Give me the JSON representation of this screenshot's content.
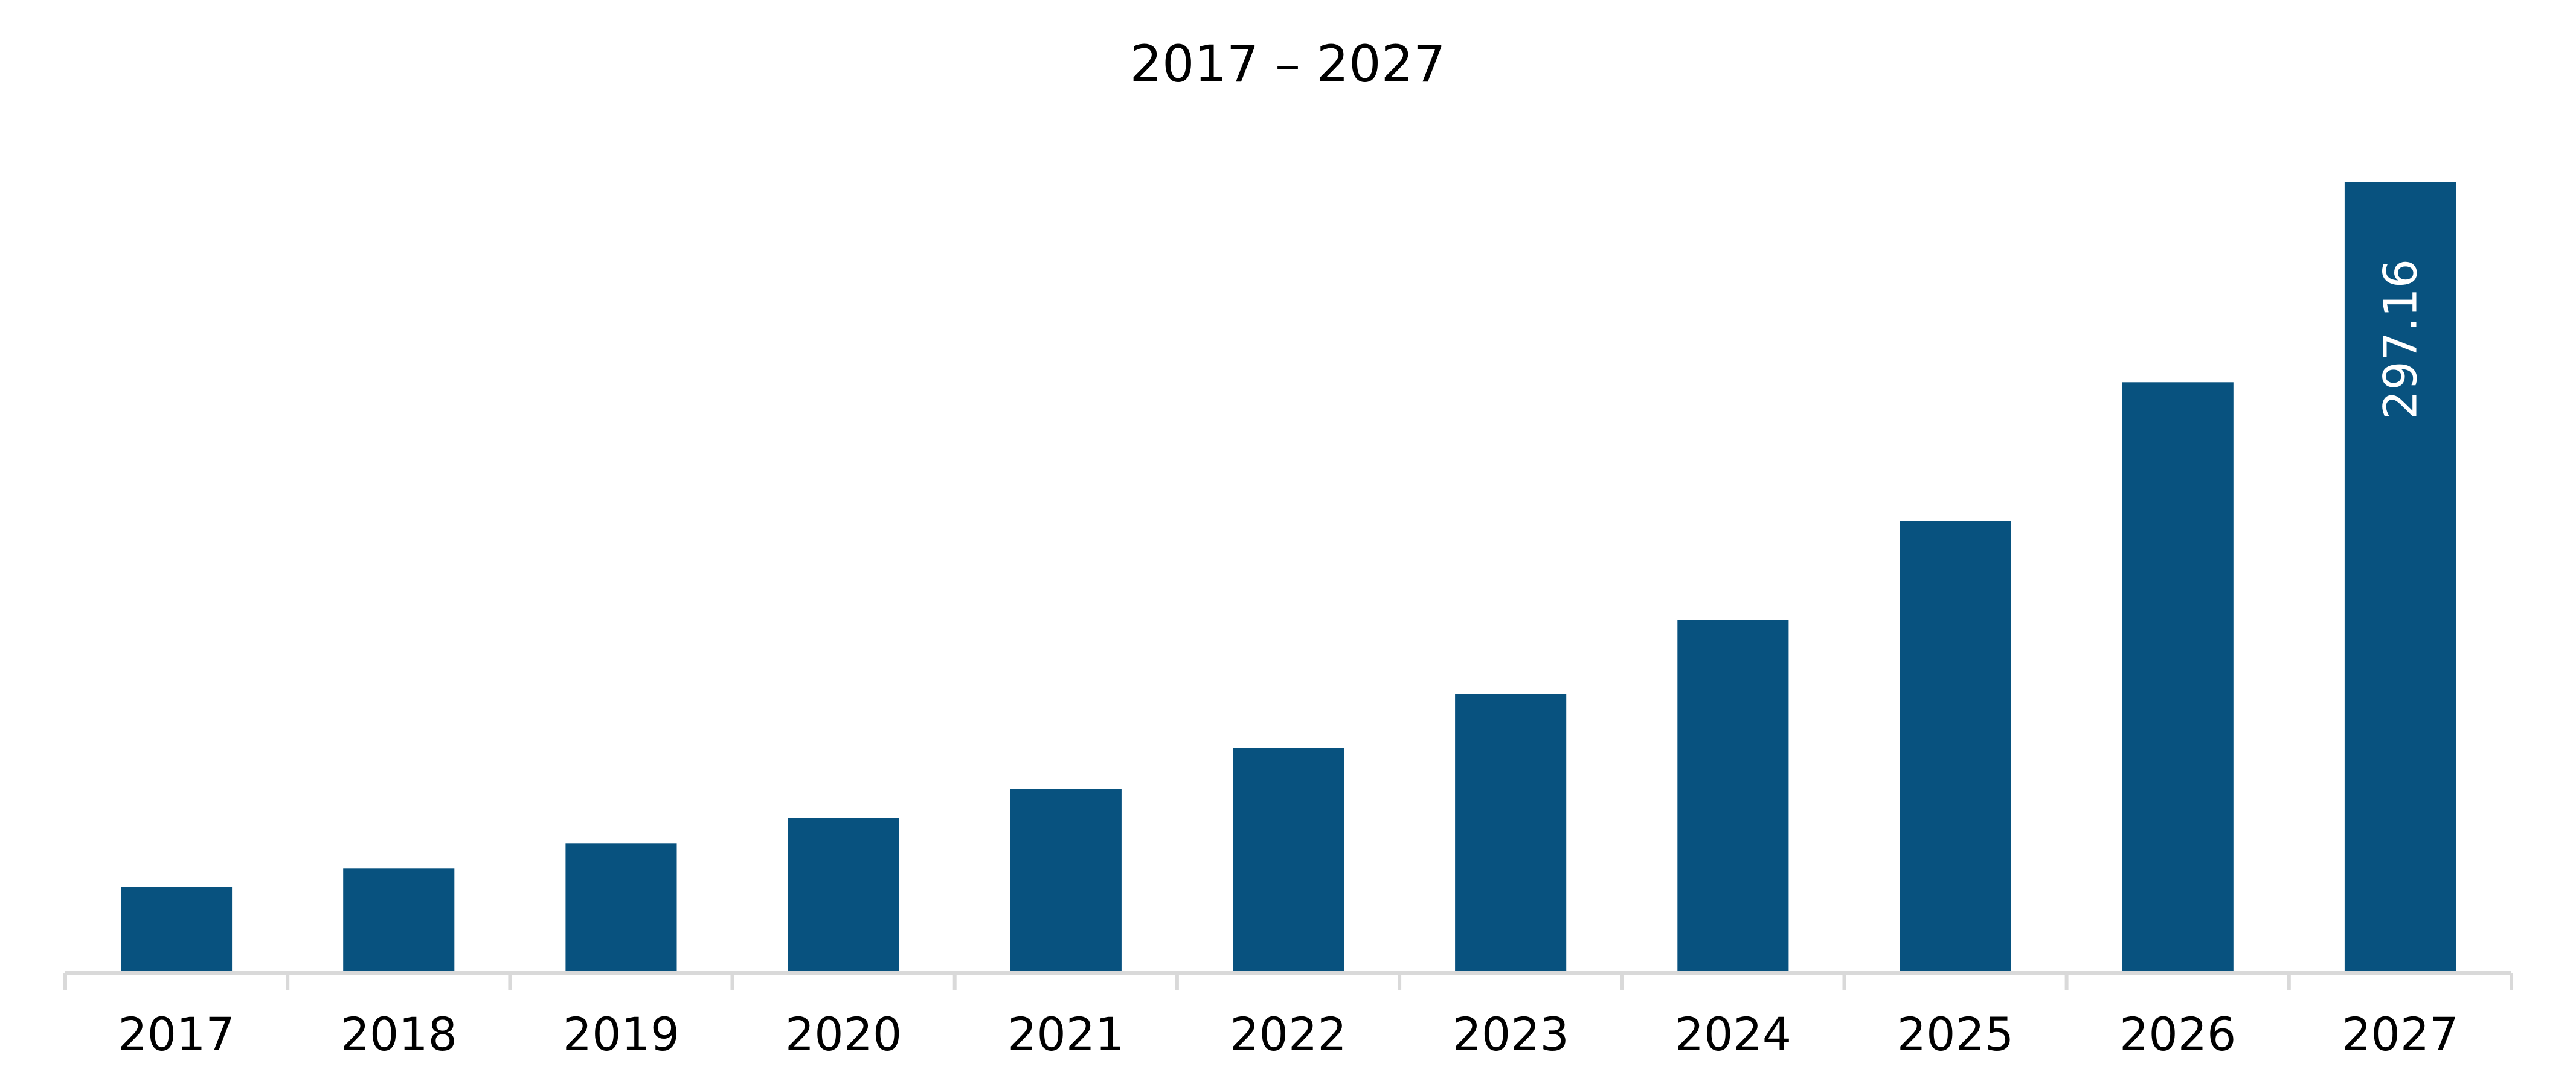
{
  "chart_data": {
    "type": "bar",
    "title": "2017 – 2027",
    "xlabel": "",
    "ylabel": "",
    "categories": [
      "2017",
      "2018",
      "2019",
      "2020",
      "2021",
      "2022",
      "2023",
      "2024",
      "2025",
      "2026",
      "2027"
    ],
    "values": [
      32.2,
      39.4,
      48.7,
      58.1,
      69.0,
      84.6,
      104.8,
      132.6,
      169.9,
      222.0,
      297.16
    ],
    "data_labels": [
      {
        "category": "2027",
        "text": "297.16",
        "orientation": "vertical"
      }
    ],
    "ylim": [
      0,
      297.16
    ],
    "grid": false,
    "legend": "none",
    "bar_color": "#08527f",
    "axis_color": "#d9d9d9"
  }
}
